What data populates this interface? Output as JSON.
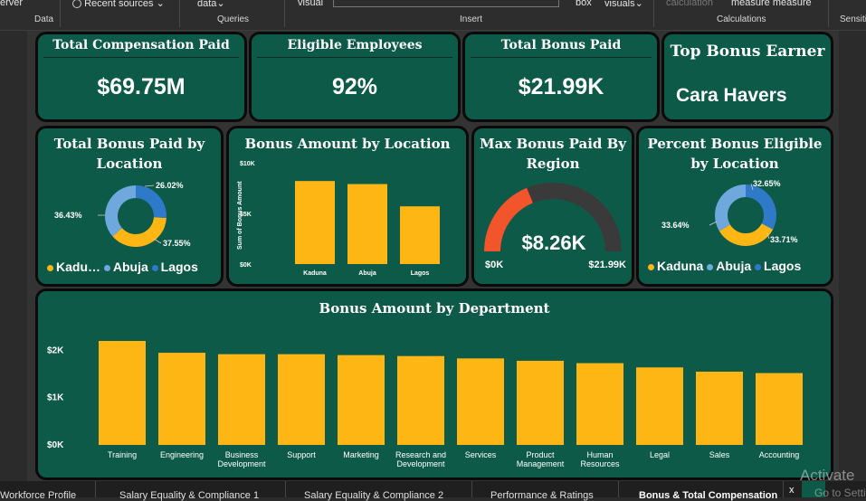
{
  "ribbon": {
    "server_label": "erver",
    "recent_sources": "Recent sources",
    "data_dropdown": "data",
    "visual_label": "visual",
    "box_label": "box",
    "visuals_dropdown": "visuals",
    "calculation_label": "calculation",
    "measure_label": "measure measure",
    "groups": [
      "Data",
      "Queries",
      "Insert",
      "Calculations",
      "Sensiti"
    ]
  },
  "kpis": {
    "total_comp": {
      "title": "Total Compensation Paid",
      "value": "$69.75M"
    },
    "eligible": {
      "title": "Eligible Employees",
      "value": "92%"
    },
    "bonus_paid": {
      "title": "Total Bonus Paid",
      "value": "$21.99K"
    },
    "top_earner": {
      "title": "Top Bonus Earner",
      "value": "Cara Havers"
    }
  },
  "colors": {
    "card": "#0e5a48",
    "bar": "#fdb614",
    "kaduna": "#fdb614",
    "abuja": "#6ea8dc",
    "lagos": "#2f79c9",
    "gauge_fill": "#f2552c",
    "gauge_track": "#3a3a3a"
  },
  "donut_bonus": {
    "title": "Total Bonus Paid by Location",
    "legend": [
      "Kadu…",
      "Abuja",
      "Lagos"
    ],
    "labels": [
      "26.02%",
      "36.43%",
      "37.55%"
    ]
  },
  "donut_eligible": {
    "title": "Percent Bonus Eligible by Location",
    "legend": [
      "Kaduna",
      "Abuja",
      "Lagos"
    ],
    "labels": [
      "32.65%",
      "33.64%",
      "33.71%"
    ]
  },
  "gauge": {
    "title": "Max Bonus Paid By Region",
    "value_label": "$8.26K",
    "min_label": "$0K",
    "max_label": "$21.99K"
  },
  "chart_data": [
    {
      "type": "pie",
      "title": "Total Bonus Paid by Location",
      "categories": [
        "Kaduna",
        "Abuja",
        "Lagos"
      ],
      "values": [
        37.55,
        36.43,
        26.02
      ]
    },
    {
      "type": "bar",
      "title": "Bonus Amount by Location",
      "categories": [
        "Kaduna",
        "Abuja",
        "Lagos"
      ],
      "values": [
        8200,
        7900,
        5700
      ],
      "ylabel": "Sum of Bonus Amount",
      "yticks": [
        "$10K",
        "$5K",
        "$0K"
      ],
      "ylim": [
        0,
        10000
      ]
    },
    {
      "type": "pie",
      "title": "Percent Bonus Eligible by Location",
      "categories": [
        "Kaduna",
        "Abuja",
        "Lagos"
      ],
      "values": [
        33.71,
        33.64,
        32.65
      ]
    },
    {
      "type": "bar",
      "title": "Bonus Amount by Department",
      "categories": [
        "Training",
        "Engineering",
        "Business Development",
        "Support",
        "Marketing",
        "Research and Development",
        "Services",
        "Product Management",
        "Human Resources",
        "Legal",
        "Sales",
        "Accounting"
      ],
      "values": [
        2200,
        1950,
        1920,
        1920,
        1900,
        1880,
        1830,
        1780,
        1730,
        1640,
        1550,
        1520
      ],
      "yticks": [
        "$2K",
        "$1K",
        "$0K"
      ],
      "ylim": [
        0,
        2200
      ]
    },
    {
      "type": "gauge",
      "title": "Max Bonus Paid By Region",
      "value": 8260,
      "min": 0,
      "max": 21990
    }
  ],
  "tabs": [
    "Workforce Profile",
    "Salary Equality & Compliance 1",
    "Salary Equality & Compliance 2",
    "Performance & Ratings",
    "Bonus & Total Compensation"
  ],
  "watermark": {
    "line1": "Activate",
    "line2": "Go to Setti"
  }
}
